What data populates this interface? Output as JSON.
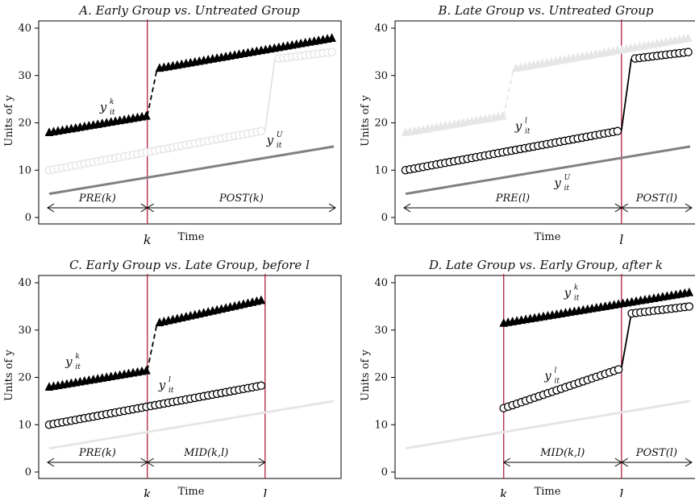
{
  "chart_data": [
    {
      "type": "line",
      "title": "A. Early Group vs. Untreated Group",
      "xlabel": "Time",
      "ylabel": "Units of y",
      "ylim": [
        0,
        40
      ],
      "yticks": [
        0,
        10,
        20,
        30,
        40
      ],
      "x_start": 1,
      "x_end": 30,
      "events": [
        {
          "label": "k",
          "x": 11
        }
      ],
      "segments": [
        {
          "label": "PRE(k)",
          "from": 1,
          "to": 11
        },
        {
          "label": "POST(k)",
          "from": 11,
          "to": 30
        }
      ],
      "series": [
        {
          "name": "y^k_it",
          "label": "y",
          "sup": "k",
          "sub": "it",
          "marker": "triangle",
          "color": "#000000",
          "x_start": 1,
          "x_end": 30,
          "start_value": 18,
          "jump_after": 11,
          "jump_start_value": 31.5,
          "end_value": 38,
          "label_x": 6.5,
          "label_y": 22.5
        },
        {
          "name": "y^l_it (faded)",
          "label": "",
          "marker": "circle",
          "color": "#e3e3e3",
          "x_start": 1,
          "x_end": 30,
          "start_value": 10,
          "jump_after": 23,
          "jump_start_value": 33.5,
          "end_value": 35
        },
        {
          "name": "y^U_it",
          "label": "y",
          "sup": "U",
          "sub": "it",
          "marker": "none",
          "color": "#808080",
          "x_start": 1,
          "x_end": 30,
          "start_value": 5,
          "end_value": 15,
          "label_x": 23.5,
          "label_y": 15.5
        }
      ]
    },
    {
      "type": "line",
      "title": "B. Late Group vs. Untreated Group",
      "xlabel": "Time",
      "ylabel": "Units of y",
      "ylim": [
        0,
        40
      ],
      "yticks": [
        0,
        10,
        20,
        30,
        40
      ],
      "x_start": 1,
      "x_end": 30,
      "events": [
        {
          "label": "l",
          "x": 23
        }
      ],
      "segments": [
        {
          "label": "PRE(l)",
          "from": 1,
          "to": 23
        },
        {
          "label": "POST(l)",
          "from": 23,
          "to": 30
        }
      ],
      "series": [
        {
          "name": "y^k_it (faded)",
          "label": "",
          "marker": "triangle",
          "color": "#e6e6e6",
          "x_start": 1,
          "x_end": 30,
          "start_value": 18,
          "jump_after": 11,
          "jump_start_value": 31.5,
          "end_value": 38
        },
        {
          "name": "y^l_it",
          "label": "y",
          "sup": "l",
          "sub": "it",
          "marker": "circle",
          "color": "#000000",
          "x_start": 1,
          "x_end": 30,
          "start_value": 10,
          "jump_after": 23,
          "jump_start_value": 33.5,
          "end_value": 35,
          "label_x": 12.5,
          "label_y": 18.5
        },
        {
          "name": "y^U_it",
          "label": "y",
          "sup": "U",
          "sub": "it",
          "marker": "none",
          "color": "#808080",
          "x_start": 1,
          "x_end": 30,
          "start_value": 5,
          "end_value": 15,
          "label_x": 16.5,
          "label_y": 6.5
        }
      ]
    },
    {
      "type": "line",
      "title": "C. Early Group vs. Late Group, before l",
      "xlabel": "Time",
      "ylabel": "Units of y",
      "ylim": [
        0,
        40
      ],
      "yticks": [
        0,
        10,
        20,
        30,
        40
      ],
      "x_start": 1,
      "x_end": 30,
      "events": [
        {
          "label": "k",
          "x": 11
        },
        {
          "label": "l",
          "x": 23
        }
      ],
      "segments": [
        {
          "label": "PRE(k)",
          "from": 1,
          "to": 11
        },
        {
          "label": "MID(k,l)",
          "from": 11,
          "to": 23
        }
      ],
      "series": [
        {
          "name": "y^k_it",
          "label": "y",
          "sup": "k",
          "sub": "it",
          "marker": "triangle",
          "color": "#000000",
          "x_start": 1,
          "x_end": 23,
          "start_value": 18,
          "jump_after": 11,
          "jump_start_value": 31.5,
          "end_value": 36.5,
          "label_x": 3,
          "label_y": 22.5
        },
        {
          "name": "y^l_it",
          "label": "y",
          "sup": "l",
          "sub": "it",
          "marker": "circle",
          "color": "#000000",
          "x_start": 1,
          "x_end": 23,
          "start_value": 10,
          "end_value": 18.4,
          "label_x": 12.5,
          "label_y": 17.5
        },
        {
          "name": "y^U_it (faded)",
          "label": "",
          "marker": "none",
          "color": "#e6e6e6",
          "x_start": 1,
          "x_end": 30,
          "start_value": 5,
          "end_value": 15
        }
      ]
    },
    {
      "type": "line",
      "title": "D. Late Group vs. Early Group, after k",
      "xlabel": "Time",
      "ylabel": "Units of y",
      "ylim": [
        0,
        40
      ],
      "yticks": [
        0,
        10,
        20,
        30,
        40
      ],
      "x_start": 1,
      "x_end": 30,
      "events": [
        {
          "label": "k",
          "x": 11
        },
        {
          "label": "l",
          "x": 23
        }
      ],
      "segments": [
        {
          "label": "MID(k,l)",
          "from": 11,
          "to": 23
        },
        {
          "label": "POST(l)",
          "from": 23,
          "to": 30
        }
      ],
      "series": [
        {
          "name": "y^k_it",
          "label": "y",
          "sup": "k",
          "sub": "it",
          "marker": "triangle",
          "color": "#000000",
          "x_start": 11,
          "x_end": 30,
          "start_value": 31.5,
          "end_value": 38,
          "label_x": 17.5,
          "label_y": 37
        },
        {
          "name": "y^l_it",
          "label": "y",
          "sup": "l",
          "sub": "it",
          "marker": "circle",
          "color": "#000000",
          "x_start": 11,
          "x_end": 30,
          "start_value": 13.5,
          "jump_after": 23,
          "jump_start_value": 33.5,
          "end_value": 35,
          "label_x": 15.5,
          "label_y": 19.5
        },
        {
          "name": "y^U_it (faded)",
          "label": "",
          "marker": "none",
          "color": "#e6e6e6",
          "x_start": 1,
          "x_end": 30,
          "start_value": 5,
          "end_value": 15
        }
      ]
    }
  ],
  "colors": {
    "event_line": "#b3203f",
    "axis": "#000000"
  }
}
